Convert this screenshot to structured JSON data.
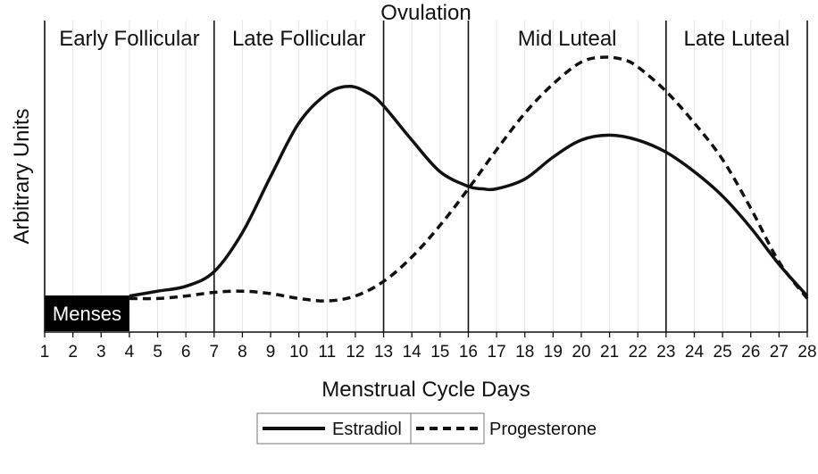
{
  "chart_data": {
    "type": "line",
    "title": "",
    "xlabel": "Menstrual Cycle Days",
    "ylabel": "Arbitrary Units",
    "x": [
      1,
      2,
      3,
      4,
      5,
      6,
      7,
      8,
      9,
      10,
      11,
      12,
      13,
      14,
      15,
      16,
      17,
      18,
      19,
      20,
      21,
      22,
      23,
      24,
      25,
      26,
      27,
      28
    ],
    "xlim": [
      1,
      28
    ],
    "ylim": [
      0,
      100
    ],
    "grid": "vertical",
    "legend_position": "bottom",
    "phases": [
      {
        "label": "Early Follicular",
        "start": 1,
        "end": 7
      },
      {
        "label": "Late Follicular",
        "start": 7,
        "end": 13
      },
      {
        "label": "",
        "start": 13,
        "end": 16
      },
      {
        "label": "Mid Luteal",
        "start": 16,
        "end": 23
      },
      {
        "label": "Late Luteal",
        "start": 23,
        "end": 28
      }
    ],
    "boundaries": [
      7,
      13,
      16,
      23
    ],
    "ovulation_label": "Ovulation",
    "menses_label": "Menses",
    "menses_range": [
      1,
      4
    ],
    "series": [
      {
        "name": "Estradiol",
        "style": "solid",
        "points": [
          [
            4,
            6
          ],
          [
            5,
            8
          ],
          [
            6,
            10
          ],
          [
            7,
            16
          ],
          [
            8,
            32
          ],
          [
            9,
            55
          ],
          [
            10,
            77
          ],
          [
            11,
            89
          ],
          [
            11.8,
            92
          ],
          [
            12.5,
            89
          ],
          [
            13,
            84
          ],
          [
            14,
            70
          ],
          [
            15,
            57
          ],
          [
            16,
            51
          ],
          [
            16.5,
            50
          ],
          [
            17,
            50
          ],
          [
            18,
            54
          ],
          [
            19,
            63
          ],
          [
            20,
            70
          ],
          [
            21,
            72
          ],
          [
            22,
            70
          ],
          [
            23,
            65
          ],
          [
            24,
            57
          ],
          [
            25,
            47
          ],
          [
            26,
            34
          ],
          [
            27,
            19
          ],
          [
            28,
            6
          ]
        ]
      },
      {
        "name": "Progesterone",
        "style": "dashed",
        "points": [
          [
            4,
            5
          ],
          [
            5,
            5
          ],
          [
            6,
            6
          ],
          [
            7,
            7.5
          ],
          [
            8,
            8
          ],
          [
            9,
            7
          ],
          [
            10,
            5
          ],
          [
            11,
            4
          ],
          [
            12,
            6
          ],
          [
            13,
            12
          ],
          [
            14,
            22
          ],
          [
            15,
            35
          ],
          [
            16,
            50
          ],
          [
            17,
            66
          ],
          [
            18,
            81
          ],
          [
            19,
            93
          ],
          [
            20,
            102
          ],
          [
            20.8,
            104
          ],
          [
            21.5,
            103
          ],
          [
            22,
            100
          ],
          [
            23,
            90
          ],
          [
            24,
            77
          ],
          [
            25,
            62
          ],
          [
            26,
            42
          ],
          [
            27,
            20
          ],
          [
            28,
            5
          ]
        ]
      }
    ],
    "colors": {
      "line": "#111111",
      "grid": "#e6e6e6",
      "background": "#ffffff",
      "menses_fill": "#000000"
    }
  }
}
